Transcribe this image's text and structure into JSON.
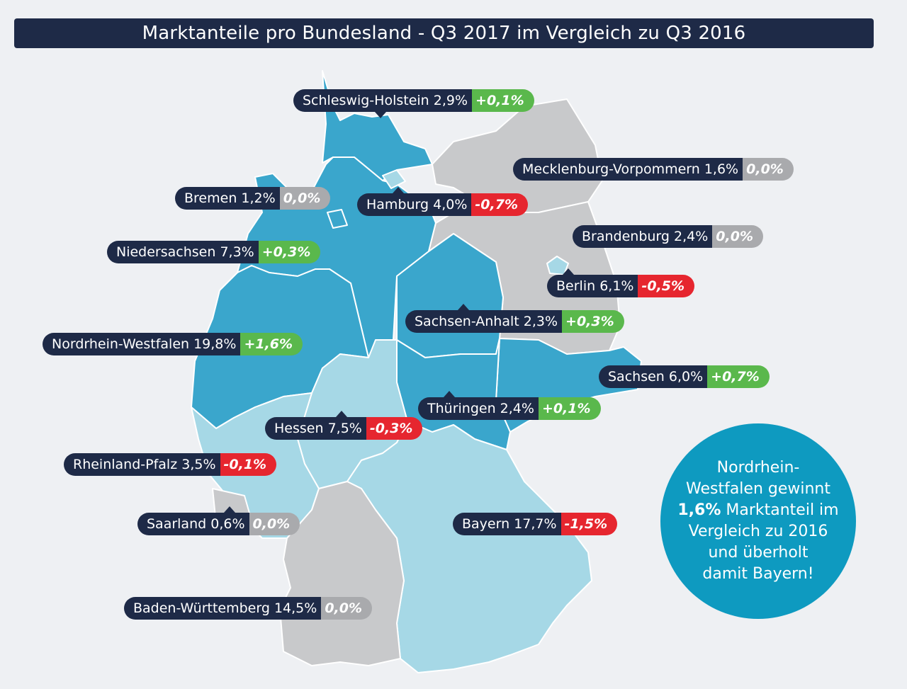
{
  "title": "Marktanteile pro Bundesland - Q3 2017 im Vergleich zu Q3 2016",
  "colors": {
    "gain": "#5ab84c",
    "loss": "#e6262f",
    "neutral": "#a9aaad",
    "label_bg": "#1e2a47",
    "region_dark": "#3aa6cc",
    "region_light": "#a6d8e6",
    "region_grey": "#c8c9cb"
  },
  "states": [
    {
      "name": "Schleswig-Holstein",
      "share": "2,9%",
      "change": "+0,1%",
      "trend": "gain",
      "shade": "dark"
    },
    {
      "name": "Mecklenburg-Vorpommern",
      "share": "1,6%",
      "change": "0,0%",
      "trend": "neutral",
      "shade": "grey"
    },
    {
      "name": "Bremen",
      "share": "1,2%",
      "change": "0,0%",
      "trend": "neutral",
      "shade": "dark"
    },
    {
      "name": "Hamburg",
      "share": "4,0%",
      "change": "-0,7%",
      "trend": "loss",
      "shade": "light"
    },
    {
      "name": "Brandenburg",
      "share": "2,4%",
      "change": "0,0%",
      "trend": "neutral",
      "shade": "grey"
    },
    {
      "name": "Niedersachsen",
      "share": "7,3%",
      "change": "+0,3%",
      "trend": "gain",
      "shade": "dark"
    },
    {
      "name": "Berlin",
      "share": "6,1%",
      "change": "-0,5%",
      "trend": "loss",
      "shade": "light"
    },
    {
      "name": "Sachsen-Anhalt",
      "share": "2,3%",
      "change": "+0,3%",
      "trend": "gain",
      "shade": "dark"
    },
    {
      "name": "Nordrhein-Westfalen",
      "share": "19,8%",
      "change": "+1,6%",
      "trend": "gain",
      "shade": "dark"
    },
    {
      "name": "Sachsen",
      "share": "6,0%",
      "change": "+0,7%",
      "trend": "gain",
      "shade": "dark"
    },
    {
      "name": "Thüringen",
      "share": "2,4%",
      "change": "+0,1%",
      "trend": "gain",
      "shade": "dark"
    },
    {
      "name": "Hessen",
      "share": "7,5%",
      "change": "-0,3%",
      "trend": "loss",
      "shade": "light"
    },
    {
      "name": "Rheinland-Pfalz",
      "share": "3,5%",
      "change": "-0,1%",
      "trend": "loss",
      "shade": "light"
    },
    {
      "name": "Saarland",
      "share": "0,6%",
      "change": "0,0%",
      "trend": "neutral",
      "shade": "grey"
    },
    {
      "name": "Bayern",
      "share": "17,7%",
      "change": "-1,5%",
      "trend": "loss",
      "shade": "light"
    },
    {
      "name": "Baden-Württemberg",
      "share": "14,5%",
      "change": "0,0%",
      "trend": "neutral",
      "shade": "grey"
    }
  ],
  "callout": {
    "line1": "Nordrhein-",
    "line2": "Westfalen gewinnt",
    "highlight": "1,6%",
    "line3_rest": " Marktanteil im",
    "line4": "Vergleich zu 2016",
    "line5": "und überholt",
    "line6": "damit Bayern!"
  }
}
